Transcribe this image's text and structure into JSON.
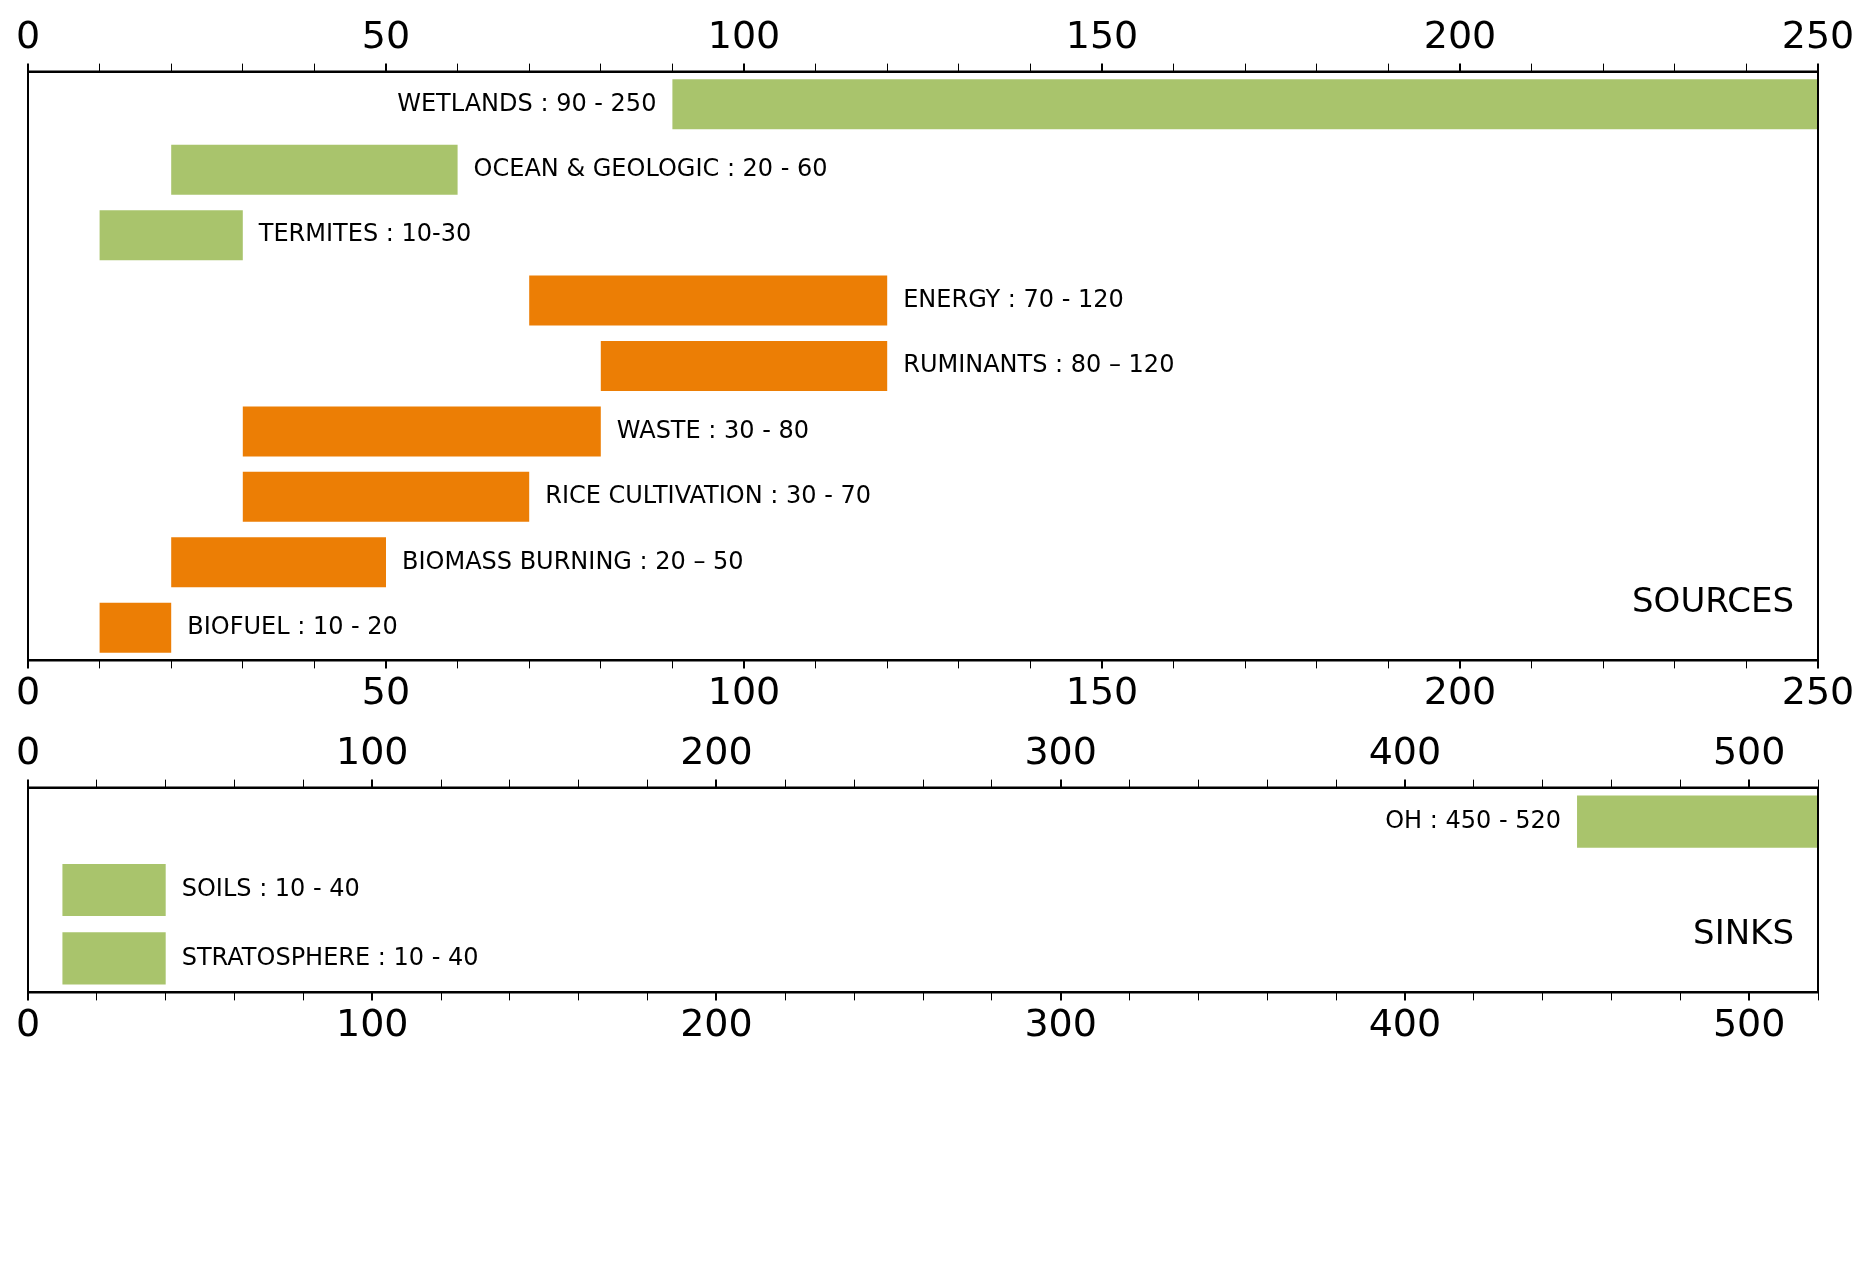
{
  "chart_data": [
    {
      "type": "bar",
      "orientation": "horizontal",
      "categories": [
        null,
        null,
        null,
        null,
        null,
        null,
        null,
        null,
        null
      ],
      "base": [
        90,
        20,
        10,
        70,
        80,
        30,
        30,
        20,
        10
      ],
      "values": [
        160,
        40,
        20,
        50,
        40,
        50,
        40,
        30,
        10
      ],
      "colors": [
        "#a9c46c",
        "#a9c46c",
        "#a9c46c",
        "#ec7e05",
        "#ec7e05",
        "#ec7e05",
        "#ec7e05",
        "#ec7e05",
        "#ec7e05"
      ],
      "value_labels": [
        "WETLANDS : 90 - 250",
        "OCEAN & GEOLOGIC : 20 - 60",
        "TERMITES : 10-30",
        "ENERGY : 70 - 120",
        "RUMINANTS : 80 – 120",
        "WASTE : 30 - 80",
        "RICE CULTIVATION : 30 - 70",
        "BIOMASS BURNING : 20 – 50",
        "BIOFUEL : 10 - 20"
      ],
      "xlim": [
        0,
        250
      ],
      "xticks": [
        0,
        {
          "value": 10,
          "label": null
        },
        {
          "value": 20,
          "label": null
        },
        {
          "value": 30,
          "label": null
        },
        {
          "value": 40,
          "label": null
        },
        50,
        {
          "value": 60,
          "label": null
        },
        {
          "value": 70,
          "label": null
        },
        {
          "value": 80,
          "label": null
        },
        {
          "value": 90,
          "label": null
        },
        100,
        {
          "value": 110,
          "label": null
        },
        {
          "value": 120,
          "label": null
        },
        {
          "value": 130,
          "label": null
        },
        {
          "value": 140,
          "label": null
        },
        150,
        {
          "value": 160,
          "label": null
        },
        {
          "value": 170,
          "label": null
        },
        {
          "value": 180,
          "label": null
        },
        {
          "value": 190,
          "label": null
        },
        200,
        {
          "value": 210,
          "label": null
        },
        {
          "value": 220,
          "label": null
        },
        {
          "value": 230,
          "label": null
        },
        {
          "value": 240,
          "label": null
        },
        250
      ],
      "x2lim": [
        0,
        250
      ],
      "x2ticks": [
        0,
        {
          "value": 10,
          "label": null
        },
        {
          "value": 20,
          "label": null
        },
        {
          "value": 30,
          "label": null
        },
        {
          "value": 40,
          "label": null
        },
        50,
        {
          "value": 60,
          "label": null
        },
        {
          "value": 70,
          "label": null
        },
        {
          "value": 80,
          "label": null
        },
        {
          "value": 90,
          "label": null
        },
        100,
        {
          "value": 110,
          "label": null
        },
        {
          "value": 120,
          "label": null
        },
        {
          "value": 130,
          "label": null
        },
        {
          "value": 140,
          "label": null
        },
        150,
        {
          "value": 160,
          "label": null
        },
        {
          "value": 170,
          "label": null
        },
        {
          "value": 180,
          "label": null
        },
        {
          "value": 190,
          "label": null
        },
        200,
        {
          "value": 210,
          "label": null
        },
        {
          "value": 220,
          "label": null
        },
        {
          "value": 230,
          "label": null
        },
        {
          "value": 240,
          "label": null
        },
        250
      ],
      "annotations": [
        "SOURCES"
      ]
    },
    {
      "type": "bar",
      "orientation": "horizontal",
      "categories": [
        null,
        null,
        null
      ],
      "base": [
        450,
        10,
        10
      ],
      "values": [
        70,
        30,
        30
      ],
      "colors": [
        "#a9c46c",
        "#a9c46c",
        "#a9c46c"
      ],
      "value_labels": [
        "OH : 450 - 520",
        "SOILS : 10 - 40",
        "STRATOSPHERE : 10 - 40"
      ],
      "xlim": [
        0,
        520
      ],
      "xticks": [
        0,
        {
          "value": 20,
          "label": null
        },
        {
          "value": 40,
          "label": null
        },
        {
          "value": 60,
          "label": null
        },
        {
          "value": 80,
          "label": null
        },
        100,
        {
          "value": 120,
          "label": null
        },
        {
          "value": 140,
          "label": null
        },
        {
          "value": 160,
          "label": null
        },
        {
          "value": 180,
          "label": null
        },
        200,
        {
          "value": 220,
          "label": null
        },
        {
          "value": 240,
          "label": null
        },
        {
          "value": 260,
          "label": null
        },
        {
          "value": 280,
          "label": null
        },
        300,
        {
          "value": 320,
          "label": null
        },
        {
          "value": 340,
          "label": null
        },
        {
          "value": 360,
          "label": null
        },
        {
          "value": 380,
          "label": null
        },
        400,
        {
          "value": 420,
          "label": null
        },
        {
          "value": 440,
          "label": null
        },
        {
          "value": 460,
          "label": null
        },
        {
          "value": 480,
          "label": null
        },
        500,
        {
          "value": 520,
          "label": null
        }
      ],
      "x2lim": [
        0,
        520
      ],
      "x2ticks": [
        0,
        {
          "value": 20,
          "label": null
        },
        {
          "value": 40,
          "label": null
        },
        {
          "value": 60,
          "label": null
        },
        {
          "value": 80,
          "label": null
        },
        100,
        {
          "value": 120,
          "label": null
        },
        {
          "value": 140,
          "label": null
        },
        {
          "value": 160,
          "label": null
        },
        {
          "value": 180,
          "label": null
        },
        200,
        {
          "value": 220,
          "label": null
        },
        {
          "value": 240,
          "label": null
        },
        {
          "value": 260,
          "label": null
        },
        {
          "value": 280,
          "label": null
        },
        300,
        {
          "value": 320,
          "label": null
        },
        {
          "value": 340,
          "label": null
        },
        {
          "value": 360,
          "label": null
        },
        {
          "value": 380,
          "label": null
        },
        400,
        {
          "value": 420,
          "label": null
        },
        {
          "value": 440,
          "label": null
        },
        {
          "value": 460,
          "label": null
        },
        {
          "value": 480,
          "label": null
        },
        500,
        {
          "value": 520,
          "label": null
        }
      ],
      "annotations": [
        "SINKS"
      ]
    }
  ]
}
